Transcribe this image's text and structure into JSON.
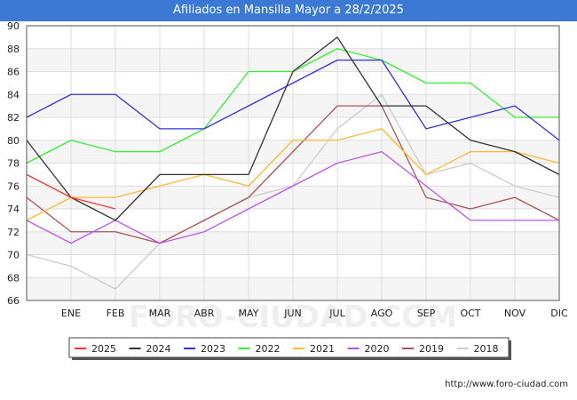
{
  "header": {
    "title": "Afiliados en Mansilla Mayor a 28/2/2025"
  },
  "footer": {
    "credit": "http://www.foro-ciudad.com"
  },
  "watermark": "FORO-CIUDAD.COM",
  "chart_data": {
    "type": "line",
    "title": "Afiliados en Mansilla Mayor a 28/2/2025",
    "xlabel": "",
    "ylabel": "",
    "categories": [
      "",
      "ENE",
      "FEB",
      "MAR",
      "ABR",
      "MAY",
      "JUN",
      "JUL",
      "AGO",
      "SEP",
      "OCT",
      "NOV",
      "DIC"
    ],
    "ylim": [
      66,
      90
    ],
    "yticks": [
      66,
      68,
      70,
      72,
      74,
      76,
      78,
      80,
      82,
      84,
      86,
      88,
      90
    ],
    "grid": true,
    "legend_position": "bottom",
    "series": [
      {
        "name": "2025",
        "color": "#ff3333",
        "values": [
          77,
          75,
          74,
          null,
          null,
          null,
          null,
          null,
          null,
          null,
          null,
          null,
          null
        ]
      },
      {
        "name": "2024",
        "color": "#333333",
        "values": [
          80,
          75,
          73,
          77,
          77,
          77,
          86,
          89,
          83,
          83,
          80,
          79,
          77
        ]
      },
      {
        "name": "2023",
        "color": "#3333dd",
        "values": [
          82,
          84,
          84,
          81,
          81,
          83,
          85,
          87,
          87,
          81,
          82,
          83,
          80
        ]
      },
      {
        "name": "2022",
        "color": "#33ee33",
        "values": [
          78,
          80,
          79,
          79,
          81,
          86,
          86,
          88,
          87,
          85,
          85,
          82,
          82
        ]
      },
      {
        "name": "2021",
        "color": "#ffb833",
        "values": [
          73,
          75,
          75,
          76,
          77,
          76,
          80,
          80,
          81,
          77,
          79,
          79,
          78
        ]
      },
      {
        "name": "2020",
        "color": "#bb55ee",
        "values": [
          73,
          71,
          73,
          71,
          72,
          74,
          76,
          78,
          79,
          76,
          73,
          73,
          73
        ]
      },
      {
        "name": "2019",
        "color": "#aa5555",
        "values": [
          75,
          72,
          72,
          71,
          73,
          75,
          79,
          83,
          83,
          75,
          74,
          75,
          73
        ]
      },
      {
        "name": "2018",
        "color": "#cccccc",
        "values": [
          70,
          69,
          67,
          71,
          73,
          75,
          76,
          81,
          84,
          77,
          78,
          76,
          75
        ]
      }
    ]
  }
}
